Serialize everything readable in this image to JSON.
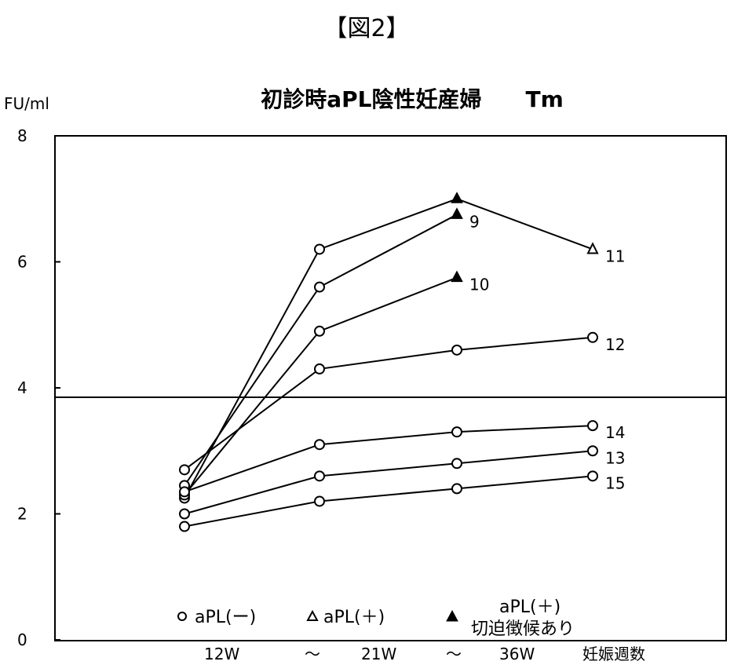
{
  "figure_label": "【図2】",
  "chart_data": {
    "type": "line",
    "title": "初診時aPL陰性妊産婦　　Tm",
    "ylabel": "FU/ml",
    "xlabel": "妊娠週数",
    "ylim": [
      0,
      8
    ],
    "yticks": [
      "0",
      "2",
      "4",
      "6",
      "8"
    ],
    "x_labels": [
      "12W",
      "〜",
      "21W",
      "〜",
      "36W"
    ],
    "categories": [
      "12W",
      "21W",
      "36W",
      "妊娠週数"
    ],
    "threshold": 3.85,
    "grid": false,
    "legend_position": "bottom",
    "legend": {
      "neg_label": "aPL(ー)",
      "pos_label": "aPL(＋)",
      "pos_sign_line1": "aPL(＋)",
      "pos_sign_line2": "切迫徴候あり"
    },
    "series": [
      {
        "name": "11",
        "values": [
          2.25,
          6.2,
          7.0,
          6.2
        ],
        "markers": [
          "circle",
          "circle",
          "filled-triangle",
          "triangle"
        ]
      },
      {
        "name": "9",
        "values": [
          2.45,
          5.6,
          6.75,
          null
        ],
        "markers": [
          "circle",
          "circle",
          "filled-triangle",
          null
        ]
      },
      {
        "name": "10",
        "values": [
          2.3,
          4.9,
          5.75,
          null
        ],
        "markers": [
          "circle",
          "circle",
          "filled-triangle",
          null
        ]
      },
      {
        "name": "12",
        "values": [
          2.7,
          4.3,
          4.6,
          4.8
        ],
        "markers": [
          "circle",
          "circle",
          "circle",
          "circle"
        ]
      },
      {
        "name": "14",
        "values": [
          2.35,
          3.1,
          3.3,
          3.4
        ],
        "markers": [
          "circle",
          "circle",
          "circle",
          "circle"
        ]
      },
      {
        "name": "13",
        "values": [
          2.0,
          2.6,
          2.8,
          3.0
        ],
        "markers": [
          "circle",
          "circle",
          "circle",
          "circle"
        ]
      },
      {
        "name": "15",
        "values": [
          1.8,
          2.2,
          2.4,
          2.6
        ],
        "markers": [
          "circle",
          "circle",
          "circle",
          "circle"
        ]
      }
    ]
  }
}
